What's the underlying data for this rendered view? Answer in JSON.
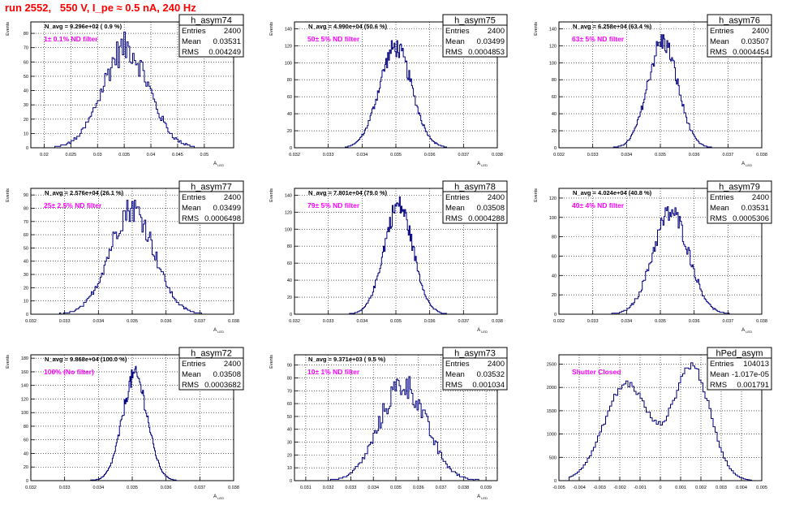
{
  "run_title": "run 2552,   550 V, I_pe ≈ 0.5 nA, 240 Hz",
  "colors": {
    "histogram": "#000080",
    "annotation": "#ff00ff",
    "title": "#ff0000",
    "frame": "#000000"
  },
  "chart_data": [
    {
      "type": "bar",
      "title": "h_asym74",
      "ylabel": "Events",
      "xlabel": "A_LED",
      "xlim": [
        0.0175,
        0.0555
      ],
      "ylim": [
        0,
        88
      ],
      "xticks": [
        "0.02",
        "0.025",
        "0.03",
        "0.035",
        "0.04",
        "0.045",
        "0.05"
      ],
      "xtick_values": [
        0.02,
        0.025,
        0.03,
        0.035,
        0.04,
        0.045,
        0.05
      ],
      "yticks": [
        0,
        10,
        20,
        30,
        40,
        50,
        60,
        70,
        80
      ],
      "n_avg_label": "N_avg = 9.296e+02 ( 0.9 %)",
      "filter_label": "1± 0.1% ND filter",
      "stats": {
        "entries_label": "Entries",
        "entries": "2400",
        "mean_label": "Mean",
        "mean": "0.03531",
        "rms_label": "RMS",
        "rms": "0.004249"
      },
      "bins": {
        "x_start": 0.022,
        "x_end": 0.0495,
        "n": 100,
        "peaks": [
          {
            "mu": 0.0353,
            "sigma": 0.0043,
            "amp": 70
          }
        ],
        "noise": 0.16
      }
    },
    {
      "type": "bar",
      "title": "h_asym75",
      "ylabel": "Events",
      "xlabel": "A_LED",
      "xlim": [
        0.032,
        0.038
      ],
      "ylim": [
        0,
        148
      ],
      "xticks": [
        "0.032",
        "0.033",
        "0.034",
        "0.035",
        "0.036",
        "0.037",
        "0.038"
      ],
      "xtick_values": [
        0.032,
        0.033,
        0.034,
        0.035,
        0.036,
        0.037,
        0.038
      ],
      "yticks": [
        0,
        20,
        40,
        60,
        80,
        100,
        120,
        140
      ],
      "n_avg_label": "N_avg = 4.990e+04 (50.6 %)",
      "filter_label": "50± 5% ND filter",
      "stats": {
        "entries_label": "Entries",
        "entries": "2400",
        "mean_label": "Mean",
        "mean": "0.03499",
        "rms_label": "RMS",
        "rms": "0.0004853"
      },
      "bins": {
        "x_start": 0.0335,
        "x_end": 0.0365,
        "n": 110,
        "peaks": [
          {
            "mu": 0.03499,
            "sigma": 0.00048,
            "amp": 118
          }
        ],
        "noise": 0.1
      }
    },
    {
      "type": "bar",
      "title": "h_asym76",
      "ylabel": "Events",
      "xlabel": "A_LED",
      "xlim": [
        0.032,
        0.038
      ],
      "ylim": [
        0,
        148
      ],
      "xticks": [
        "0.032",
        "0.033",
        "0.034",
        "0.035",
        "0.036",
        "0.037",
        "0.038"
      ],
      "xtick_values": [
        0.032,
        0.033,
        0.034,
        0.035,
        0.036,
        0.037,
        0.038
      ],
      "yticks": [
        0,
        20,
        40,
        60,
        80,
        100,
        120,
        140
      ],
      "n_avg_label": "N_avg = 6.258e+04 (63.4 %)",
      "filter_label": "63± 5% ND filter",
      "stats": {
        "entries_label": "Entries",
        "entries": "2400",
        "mean_label": "Mean",
        "mean": "0.03507",
        "rms_label": "RMS",
        "rms": "0.0004454"
      },
      "bins": {
        "x_start": 0.0335,
        "x_end": 0.0366,
        "n": 110,
        "peaks": [
          {
            "mu": 0.03507,
            "sigma": 0.00044,
            "amp": 125
          }
        ],
        "noise": 0.1
      }
    },
    {
      "type": "bar",
      "title": "h_asym77",
      "ylabel": "Events",
      "xlabel": "A_LED",
      "xlim": [
        0.032,
        0.038
      ],
      "ylim": [
        0,
        95
      ],
      "xticks": [
        "0.032",
        "0.033",
        "0.034",
        "0.035",
        "0.036",
        "0.037",
        "0.038"
      ],
      "xtick_values": [
        0.032,
        0.033,
        0.034,
        0.035,
        0.036,
        0.037,
        0.038
      ],
      "yticks": [
        0,
        10,
        20,
        30,
        40,
        50,
        60,
        70,
        80,
        90
      ],
      "n_avg_label": "N_avg = 2.576e+04 (26.1 %)",
      "filter_label": "25± 2.5% ND filter",
      "stats": {
        "entries_label": "Entries",
        "entries": "2400",
        "mean_label": "Mean",
        "mean": "0.03499",
        "rms_label": "RMS",
        "rms": "0.0006498"
      },
      "bins": {
        "x_start": 0.0327,
        "x_end": 0.0372,
        "n": 120,
        "peaks": [
          {
            "mu": 0.03499,
            "sigma": 0.00065,
            "amp": 80
          }
        ],
        "noise": 0.13
      }
    },
    {
      "type": "bar",
      "title": "h_asym78",
      "ylabel": "Events",
      "xlabel": "A_LED",
      "xlim": [
        0.032,
        0.038
      ],
      "ylim": [
        0,
        148
      ],
      "xticks": [
        "0.032",
        "0.033",
        "0.034",
        "0.035",
        "0.036",
        "0.037",
        "0.038"
      ],
      "xtick_values": [
        0.032,
        0.033,
        0.034,
        0.035,
        0.036,
        0.037,
        0.038
      ],
      "yticks": [
        0,
        20,
        40,
        60,
        80,
        100,
        120,
        140
      ],
      "n_avg_label": "N_avg = 7.801e+04 (79.0 %)",
      "filter_label": "79± 5% ND filter",
      "stats": {
        "entries_label": "Entries",
        "entries": "2400",
        "mean_label": "Mean",
        "mean": "0.03508",
        "rms_label": "RMS",
        "rms": "0.0004288"
      },
      "bins": {
        "x_start": 0.0336,
        "x_end": 0.0365,
        "n": 110,
        "peaks": [
          {
            "mu": 0.03508,
            "sigma": 0.00043,
            "amp": 128
          }
        ],
        "noise": 0.1
      }
    },
    {
      "type": "bar",
      "title": "h_asym79",
      "ylabel": "Events",
      "xlabel": "A_LED",
      "xlim": [
        0.032,
        0.038
      ],
      "ylim": [
        0,
        130
      ],
      "xticks": [
        "0.032",
        "0.033",
        "0.034",
        "0.035",
        "0.036",
        "0.037",
        "0.038"
      ],
      "xtick_values": [
        0.032,
        0.033,
        0.034,
        0.035,
        0.036,
        0.037,
        0.038
      ],
      "yticks": [
        0,
        20,
        40,
        60,
        80,
        100,
        120
      ],
      "n_avg_label": "N_avg = 4.024e+04 (40.8 %)",
      "filter_label": "40± 4% ND filter",
      "stats": {
        "entries_label": "Entries",
        "entries": "2400",
        "mean_label": "Mean",
        "mean": "0.03531",
        "rms_label": "RMS",
        "rms": "0.0005306"
      },
      "bins": {
        "x_start": 0.0335,
        "x_end": 0.0372,
        "n": 115,
        "peaks": [
          {
            "mu": 0.03531,
            "sigma": 0.00053,
            "amp": 105
          }
        ],
        "noise": 0.11
      }
    },
    {
      "type": "bar",
      "title": "h_asym72",
      "ylabel": "Events",
      "xlabel": "A_LED",
      "xlim": [
        0.032,
        0.038
      ],
      "ylim": [
        0,
        185
      ],
      "xticks": [
        "0.032",
        "0.033",
        "0.034",
        "0.035",
        "0.036",
        "0.037",
        "0.038"
      ],
      "xtick_values": [
        0.032,
        0.033,
        0.034,
        0.035,
        0.036,
        0.037,
        0.038
      ],
      "yticks": [
        0,
        20,
        40,
        60,
        80,
        100,
        120,
        140,
        160,
        180
      ],
      "n_avg_label": "N_avg = 9.868e+04 (100.0 %)",
      "filter_label": "100% (No filter)",
      "stats": {
        "entries_label": "Entries",
        "entries": "2400",
        "mean_label": "Mean",
        "mean": "0.03508",
        "rms_label": "RMS",
        "rms": "0.0003682"
      },
      "bins": {
        "x_start": 0.0337,
        "x_end": 0.0363,
        "n": 110,
        "peaks": [
          {
            "mu": 0.03508,
            "sigma": 0.00037,
            "amp": 155
          }
        ],
        "noise": 0.09
      }
    },
    {
      "type": "bar",
      "title": "h_asym73",
      "ylabel": "Events",
      "xlabel": "A_LED",
      "xlim": [
        0.0305,
        0.0395
      ],
      "ylim": [
        0,
        98
      ],
      "xticks": [
        "0.031",
        "0.032",
        "0.033",
        "0.034",
        "0.035",
        "0.036",
        "0.037",
        "0.038",
        "0.039"
      ],
      "xtick_values": [
        0.031,
        0.032,
        0.033,
        0.034,
        0.035,
        0.036,
        0.037,
        0.038,
        0.039
      ],
      "yticks": [
        0,
        10,
        20,
        30,
        40,
        50,
        60,
        70,
        80,
        90
      ],
      "n_avg_label": "N_avg = 9.371e+03 ( 9.5 %)",
      "filter_label": "10± 1% ND filter",
      "stats": {
        "entries_label": "Entries",
        "entries": "2400",
        "mean_label": "Mean",
        "mean": "0.03532",
        "rms_label": "RMS",
        "rms": "0.001034"
      },
      "bins": {
        "x_start": 0.0321,
        "x_end": 0.0388,
        "n": 110,
        "peaks": [
          {
            "mu": 0.03532,
            "sigma": 0.00103,
            "amp": 75
          }
        ],
        "noise": 0.15
      }
    },
    {
      "type": "bar",
      "title": "hPed_asym",
      "ylabel": "",
      "xlabel": "",
      "xlim": [
        -0.005,
        0.005
      ],
      "ylim": [
        0,
        2700
      ],
      "xticks": [
        "-0.005",
        "-0.004",
        "-0.003",
        "-0.002",
        "-0.001",
        "0",
        "0.001",
        "0.002",
        "0.003",
        "0.004",
        "0.005"
      ],
      "xtick_values": [
        -0.005,
        -0.004,
        -0.003,
        -0.002,
        -0.001,
        0,
        0.001,
        0.002,
        0.003,
        0.004,
        0.005
      ],
      "yticks": [
        0,
        500,
        1000,
        1500,
        2000,
        2500
      ],
      "n_avg_label": "",
      "filter_label": "Shutter Closed",
      "stats": {
        "entries_label": "Entries",
        "entries": "104013",
        "mean_label": "Mean",
        "mean": "-1.017e-05",
        "rms_label": "RMS",
        "rms": "0.001791"
      },
      "bins": {
        "x_start": -0.0045,
        "x_end": 0.0045,
        "n": 90,
        "peaks": [
          {
            "mu": -0.00165,
            "sigma": 0.0011,
            "amp": 2080
          },
          {
            "mu": 0.00155,
            "sigma": 0.0009,
            "amp": 2450
          }
        ],
        "noise": 0.04
      }
    }
  ]
}
